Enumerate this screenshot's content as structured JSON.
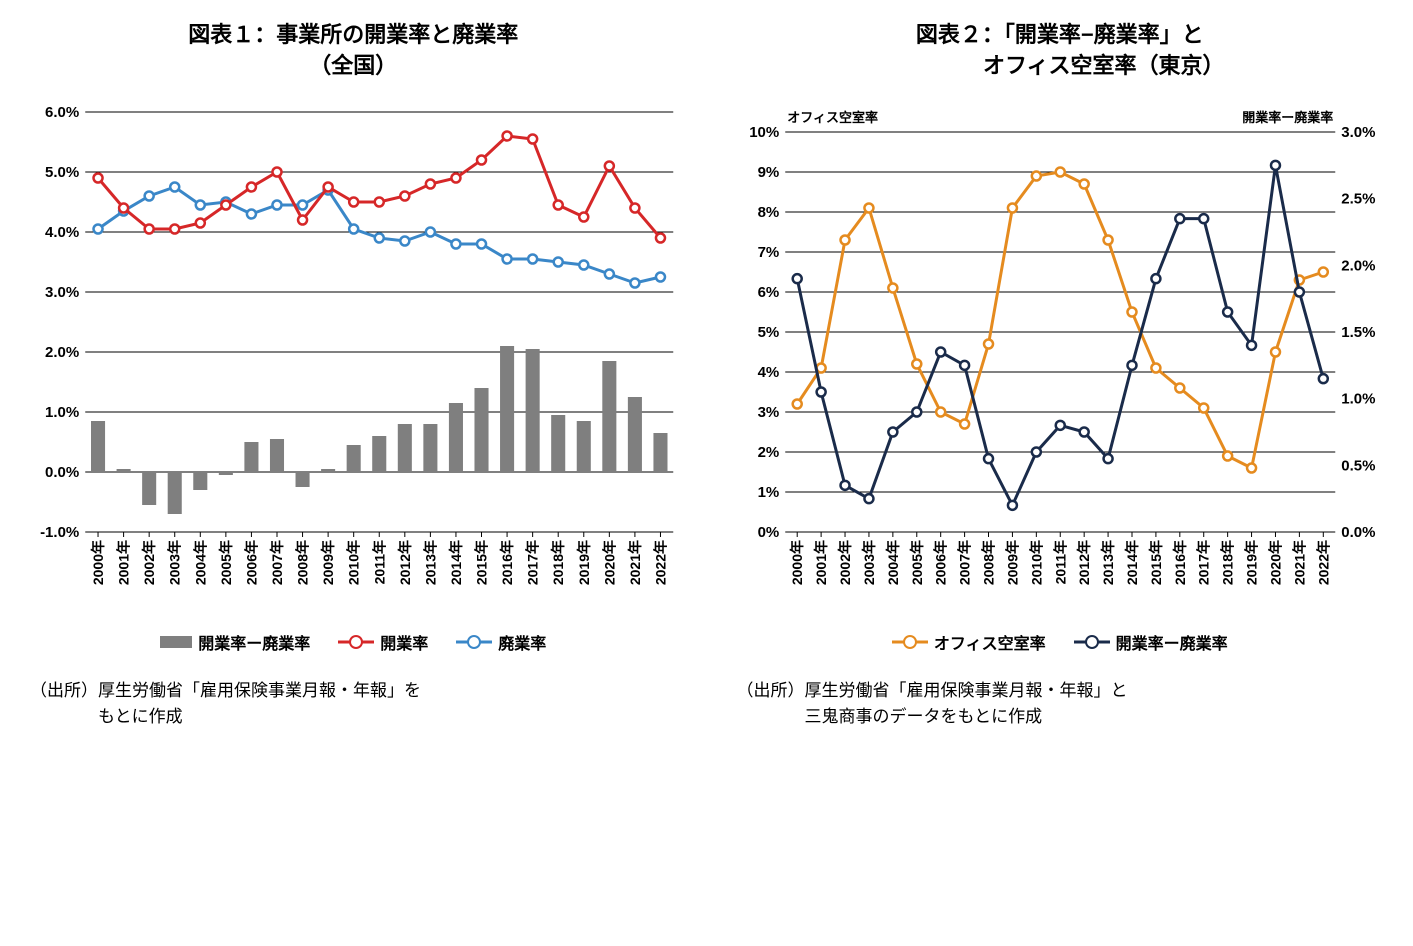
{
  "chart1": {
    "type": "combo-bar-line",
    "title_line1": "図表１：事業所の開業率と廃業率",
    "title_line2": "（全国）",
    "years": [
      "2000年",
      "2001年",
      "2002年",
      "2003年",
      "2004年",
      "2005年",
      "2006年",
      "2007年",
      "2008年",
      "2009年",
      "2010年",
      "2011年",
      "2012年",
      "2013年",
      "2014年",
      "2015年",
      "2016年",
      "2017年",
      "2018年",
      "2019年",
      "2020年",
      "2021年",
      "2022年"
    ],
    "bars": {
      "label": "開業率ー廃業率",
      "color": "#7f7f7f",
      "values": [
        0.85,
        0.05,
        -0.55,
        -0.7,
        -0.3,
        -0.05,
        0.5,
        0.55,
        -0.25,
        0.05,
        0.45,
        0.6,
        0.8,
        0.8,
        1.15,
        1.4,
        2.1,
        2.05,
        0.95,
        0.85,
        1.85,
        1.25,
        0.65
      ]
    },
    "line_open": {
      "label": "開業率",
      "color": "#d62728",
      "values": [
        4.9,
        4.4,
        4.05,
        4.05,
        4.15,
        4.45,
        4.75,
        5.0,
        4.2,
        4.75,
        4.5,
        4.5,
        4.6,
        4.8,
        4.9,
        5.2,
        5.6,
        5.55,
        4.45,
        4.25,
        5.1,
        4.4,
        3.9
      ]
    },
    "line_close": {
      "label": "廃業率",
      "color": "#3a87c8",
      "values": [
        4.05,
        4.35,
        4.6,
        4.75,
        4.45,
        4.5,
        4.3,
        4.45,
        4.45,
        4.7,
        4.05,
        3.9,
        3.85,
        4.0,
        3.8,
        3.8,
        3.55,
        3.55,
        3.5,
        3.45,
        3.3,
        3.15,
        3.25
      ]
    },
    "ylim": [
      -1.0,
      6.0
    ],
    "yticks": [
      -1.0,
      0.0,
      1.0,
      2.0,
      3.0,
      4.0,
      5.0,
      6.0
    ],
    "ytick_labels": [
      "-1.0%",
      "0.0%",
      "1.0%",
      "2.0%",
      "3.0%",
      "4.0%",
      "5.0%",
      "6.0%"
    ],
    "grid_color": "#000000",
    "source_line1": "（出所）厚生労働省「雇用保険事業月報・年報」を",
    "source_line2": "　　　　もとに作成"
  },
  "chart2": {
    "type": "dual-axis-line",
    "title_line1": "図表２：「開業率−廃業率」と",
    "title_line2": "　　　　オフィス空室率（東京）",
    "years": [
      "2000年",
      "2001年",
      "2002年",
      "2003年",
      "2004年",
      "2005年",
      "2006年",
      "2007年",
      "2008年",
      "2009年",
      "2010年",
      "2011年",
      "2012年",
      "2013年",
      "2014年",
      "2015年",
      "2016年",
      "2017年",
      "2018年",
      "2019年",
      "2020年",
      "2021年",
      "2022年"
    ],
    "left_axis_title": "オフィス空室率",
    "right_axis_title": "開業率ー廃業率",
    "line_vacancy": {
      "label": "オフィス空室率",
      "color": "#e58b1f",
      "axis": "left",
      "values": [
        3.2,
        4.1,
        7.3,
        8.1,
        6.1,
        4.2,
        3.0,
        2.7,
        4.7,
        8.1,
        8.9,
        9.0,
        8.7,
        7.3,
        5.5,
        4.1,
        3.6,
        3.1,
        1.9,
        1.6,
        4.5,
        6.3,
        6.5
      ]
    },
    "line_diff": {
      "label": "開業率ー廃業率",
      "color": "#1a2b4a",
      "axis": "right",
      "values": [
        1.9,
        1.05,
        0.35,
        0.25,
        0.75,
        0.9,
        1.35,
        1.25,
        0.55,
        0.2,
        0.6,
        0.8,
        0.75,
        0.55,
        1.25,
        1.9,
        2.35,
        2.35,
        1.65,
        1.4,
        2.75,
        1.8,
        1.15
      ]
    },
    "ylim_left": [
      0,
      10
    ],
    "yticks_left": [
      0,
      1,
      2,
      3,
      4,
      5,
      6,
      7,
      8,
      9,
      10
    ],
    "ytick_labels_left": [
      "0%",
      "1%",
      "2%",
      "3%",
      "4%",
      "5%",
      "6%",
      "7%",
      "8%",
      "9%",
      "10%"
    ],
    "ylim_right": [
      0.0,
      3.0
    ],
    "yticks_right": [
      0.0,
      0.5,
      1.0,
      1.5,
      2.0,
      2.5,
      3.0
    ],
    "ytick_labels_right": [
      "0.0%",
      "0.5%",
      "1.0%",
      "1.5%",
      "2.0%",
      "2.5%",
      "3.0%"
    ],
    "grid_color": "#000000",
    "source_line1": "（出所）厚生労働省「雇用保険事業月報・年報」と",
    "source_line2": "　　　　三鬼商事のデータをもとに作成"
  }
}
